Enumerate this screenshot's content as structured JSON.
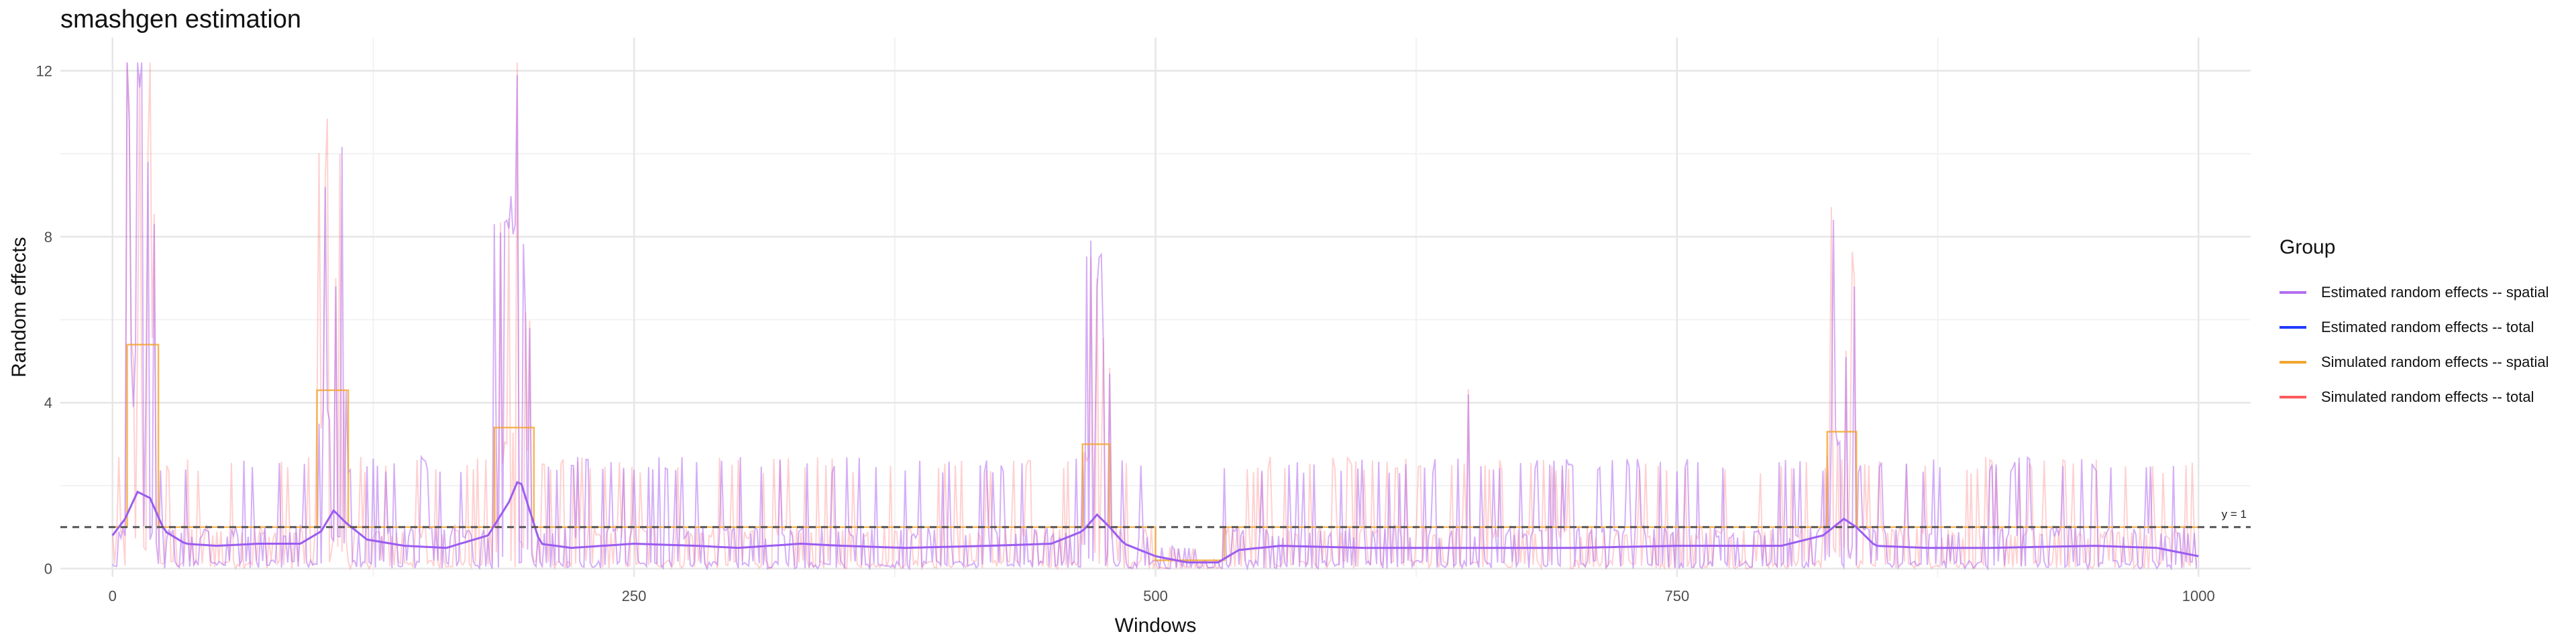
{
  "chart_data": {
    "type": "line",
    "title": "smashgen estimation",
    "xlabel": "Windows",
    "ylabel": "Random effects",
    "xlim": [
      -25,
      1025
    ],
    "ylim": [
      -0.2,
      12.8
    ],
    "xticks": [
      0,
      250,
      500,
      750,
      1000
    ],
    "yticks": [
      0,
      4,
      8,
      12
    ],
    "grid": true,
    "legend_position": "right",
    "legend_title": "Group",
    "reference_line": {
      "y": 1,
      "label": "y = 1",
      "style": "dashed",
      "color": "#555555"
    },
    "series": [
      {
        "name": "Estimated random effects -- spatial",
        "color": "#b26ef0",
        "kind": "noisy"
      },
      {
        "name": "Estimated random effects -- total",
        "color": "#1f3cff",
        "kind": "smooth"
      },
      {
        "name": "Simulated random effects -- spatial",
        "color": "#f2a52e",
        "kind": "step"
      },
      {
        "name": "Simulated random effects -- total",
        "color": "#ff5a5a",
        "kind": "noisy-light"
      }
    ],
    "step_segments": [
      {
        "x0": 0,
        "x1": 7,
        "y": 1.0
      },
      {
        "x0": 7,
        "x1": 22,
        "y": 5.4
      },
      {
        "x0": 22,
        "x1": 98,
        "y": 1.0
      },
      {
        "x0": 98,
        "x1": 113,
        "y": 4.3
      },
      {
        "x0": 113,
        "x1": 183,
        "y": 1.0
      },
      {
        "x0": 183,
        "x1": 202,
        "y": 3.4
      },
      {
        "x0": 202,
        "x1": 465,
        "y": 1.0
      },
      {
        "x0": 465,
        "x1": 478,
        "y": 3.0
      },
      {
        "x0": 478,
        "x1": 500,
        "y": 1.0
      },
      {
        "x0": 500,
        "x1": 533,
        "y": 0.2
      },
      {
        "x0": 533,
        "x1": 822,
        "y": 1.0
      },
      {
        "x0": 822,
        "x1": 836,
        "y": 3.3
      },
      {
        "x0": 836,
        "x1": 1000,
        "y": 1.0
      }
    ],
    "smooth_points": [
      [
        0,
        0.8
      ],
      [
        6,
        1.2
      ],
      [
        12,
        1.85
      ],
      [
        18,
        1.7
      ],
      [
        25,
        0.9
      ],
      [
        35,
        0.6
      ],
      [
        50,
        0.55
      ],
      [
        70,
        0.6
      ],
      [
        90,
        0.6
      ],
      [
        100,
        0.9
      ],
      [
        106,
        1.4
      ],
      [
        112,
        1.1
      ],
      [
        122,
        0.7
      ],
      [
        140,
        0.55
      ],
      [
        160,
        0.5
      ],
      [
        180,
        0.8
      ],
      [
        190,
        1.6
      ],
      [
        195,
        2.2
      ],
      [
        200,
        1.4
      ],
      [
        205,
        0.6
      ],
      [
        220,
        0.5
      ],
      [
        250,
        0.6
      ],
      [
        280,
        0.55
      ],
      [
        300,
        0.5
      ],
      [
        330,
        0.6
      ],
      [
        350,
        0.55
      ],
      [
        380,
        0.5
      ],
      [
        420,
        0.55
      ],
      [
        450,
        0.6
      ],
      [
        465,
        0.9
      ],
      [
        472,
        1.3
      ],
      [
        478,
        1.0
      ],
      [
        485,
        0.6
      ],
      [
        500,
        0.3
      ],
      [
        515,
        0.15
      ],
      [
        530,
        0.15
      ],
      [
        540,
        0.45
      ],
      [
        560,
        0.55
      ],
      [
        600,
        0.5
      ],
      [
        650,
        0.5
      ],
      [
        700,
        0.5
      ],
      [
        750,
        0.55
      ],
      [
        800,
        0.55
      ],
      [
        820,
        0.8
      ],
      [
        830,
        1.2
      ],
      [
        836,
        1.0
      ],
      [
        845,
        0.55
      ],
      [
        870,
        0.5
      ],
      [
        900,
        0.5
      ],
      [
        950,
        0.55
      ],
      [
        980,
        0.5
      ],
      [
        1000,
        0.3
      ]
    ],
    "noisy_peaks": [
      [
        8,
        10.8
      ],
      [
        13,
        11.6
      ],
      [
        17,
        9.8
      ],
      [
        20,
        8.3
      ],
      [
        102,
        9.2
      ],
      [
        107,
        6.8
      ],
      [
        186,
        8.1
      ],
      [
        190,
        8.2
      ],
      [
        194,
        11.9
      ],
      [
        198,
        6.0
      ],
      [
        200,
        5.8
      ],
      [
        472,
        6.8
      ],
      [
        475,
        5.4
      ],
      [
        478,
        4.7
      ],
      [
        650,
        4.2
      ],
      [
        835,
        6.8
      ],
      [
        831,
        5.1
      ]
    ],
    "noisy_baseline": 0.9,
    "noisy_count": 1000
  }
}
